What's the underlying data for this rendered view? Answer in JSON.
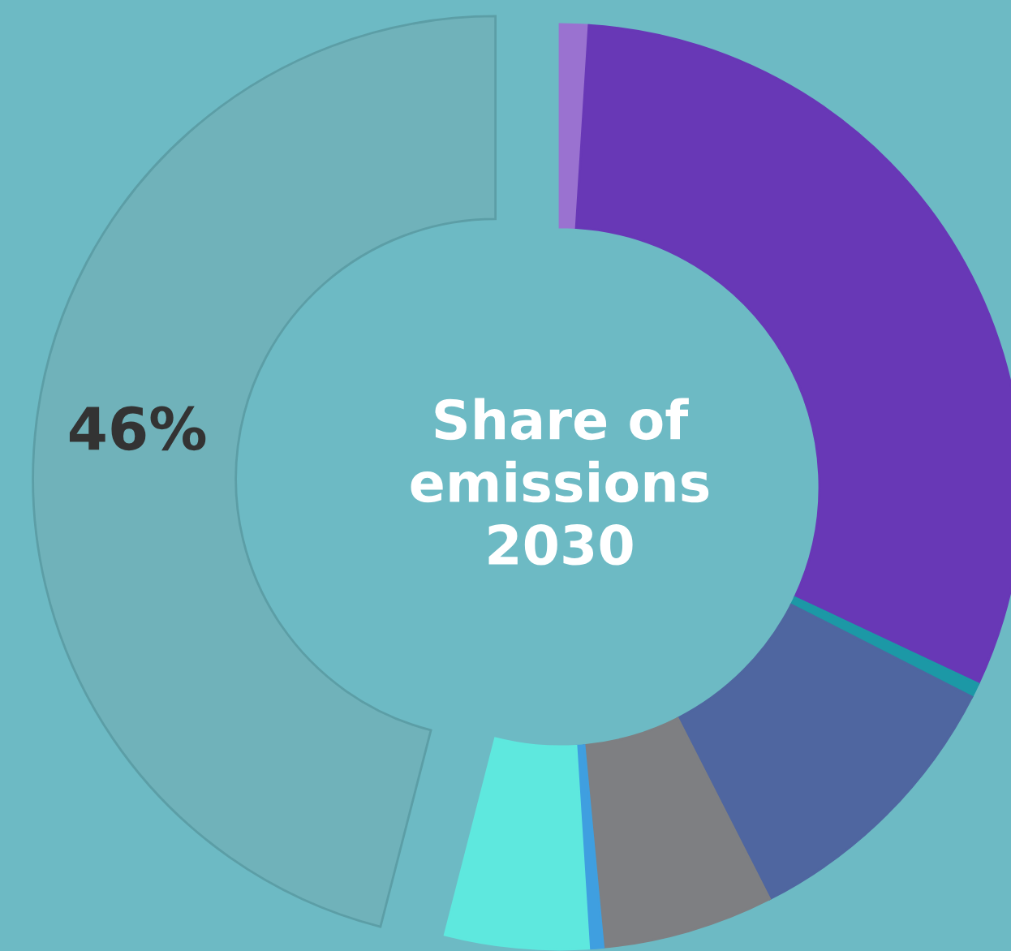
{
  "chart_data": {
    "type": "donut",
    "title": "Share of\nemissions\n2030",
    "categories": [
      null,
      null,
      null,
      null,
      null,
      null,
      null,
      null
    ],
    "values": [
      1,
      31,
      0.5,
      10,
      6,
      0.5,
      5,
      46
    ],
    "colors": [
      "#9a72d0",
      "#6838b6",
      "#1c98a6",
      "#4f66a0",
      "#7e7f82",
      "#3f9fe0",
      "#5ee8de",
      "#70b2ba"
    ],
    "value_labels": [
      null,
      null,
      null,
      null,
      null,
      null,
      null,
      "46%"
    ]
  }
}
